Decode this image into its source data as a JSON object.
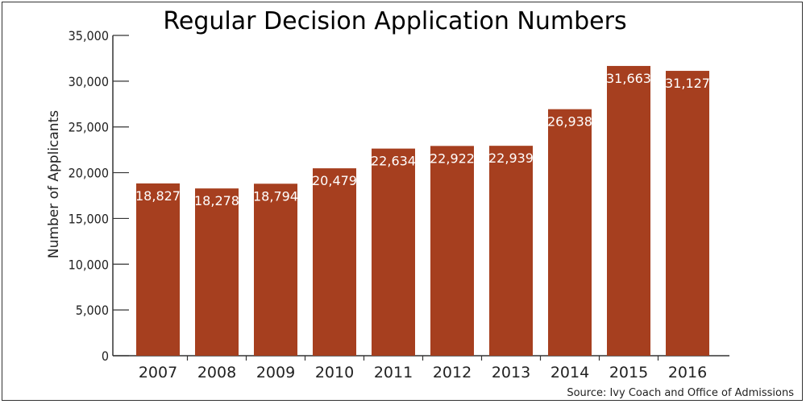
{
  "chart_data": {
    "type": "bar",
    "title": "Regular Decision Application Numbers",
    "xlabel": "",
    "ylabel": "Number of Applicants",
    "categories": [
      "2007",
      "2008",
      "2009",
      "2010",
      "2011",
      "2012",
      "2013",
      "2014",
      "2015",
      "2016"
    ],
    "values": [
      18827,
      18278,
      18794,
      20479,
      22634,
      22922,
      22939,
      26938,
      31663,
      31127
    ],
    "value_labels": [
      "18,827",
      "18,278",
      "18,794",
      "20,479",
      "22,634",
      "22,922",
      "22,939",
      "26,938",
      "31,663",
      "31,127"
    ],
    "yticks": [
      0,
      5000,
      10000,
      15000,
      20000,
      25000,
      30000,
      35000
    ],
    "ytick_labels": [
      "0",
      "5,000",
      "10,000",
      "15,000",
      "20,000",
      "25,000",
      "30,000",
      "35,000"
    ],
    "ylim": [
      0,
      35000
    ],
    "grid": false,
    "legend": "none",
    "bar_color": "#a63f1f",
    "source": "Source: Ivy Coach and Office of Admissions"
  }
}
